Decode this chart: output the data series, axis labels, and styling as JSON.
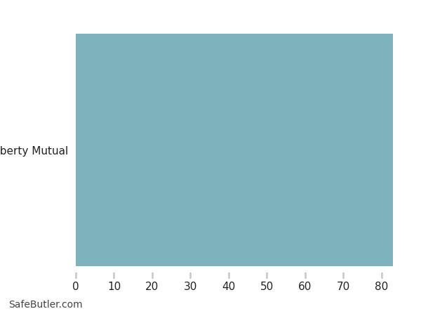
{
  "categories": [
    "Liberty Mutual"
  ],
  "values": [
    83
  ],
  "bar_color": "#7fb3bc",
  "xlim": [
    0,
    87
  ],
  "xticks": [
    0,
    10,
    20,
    30,
    40,
    50,
    60,
    70,
    80
  ],
  "background_color": "#ffffff",
  "bar_height": 0.95,
  "watermark": "SafeButler.com",
  "title": ""
}
